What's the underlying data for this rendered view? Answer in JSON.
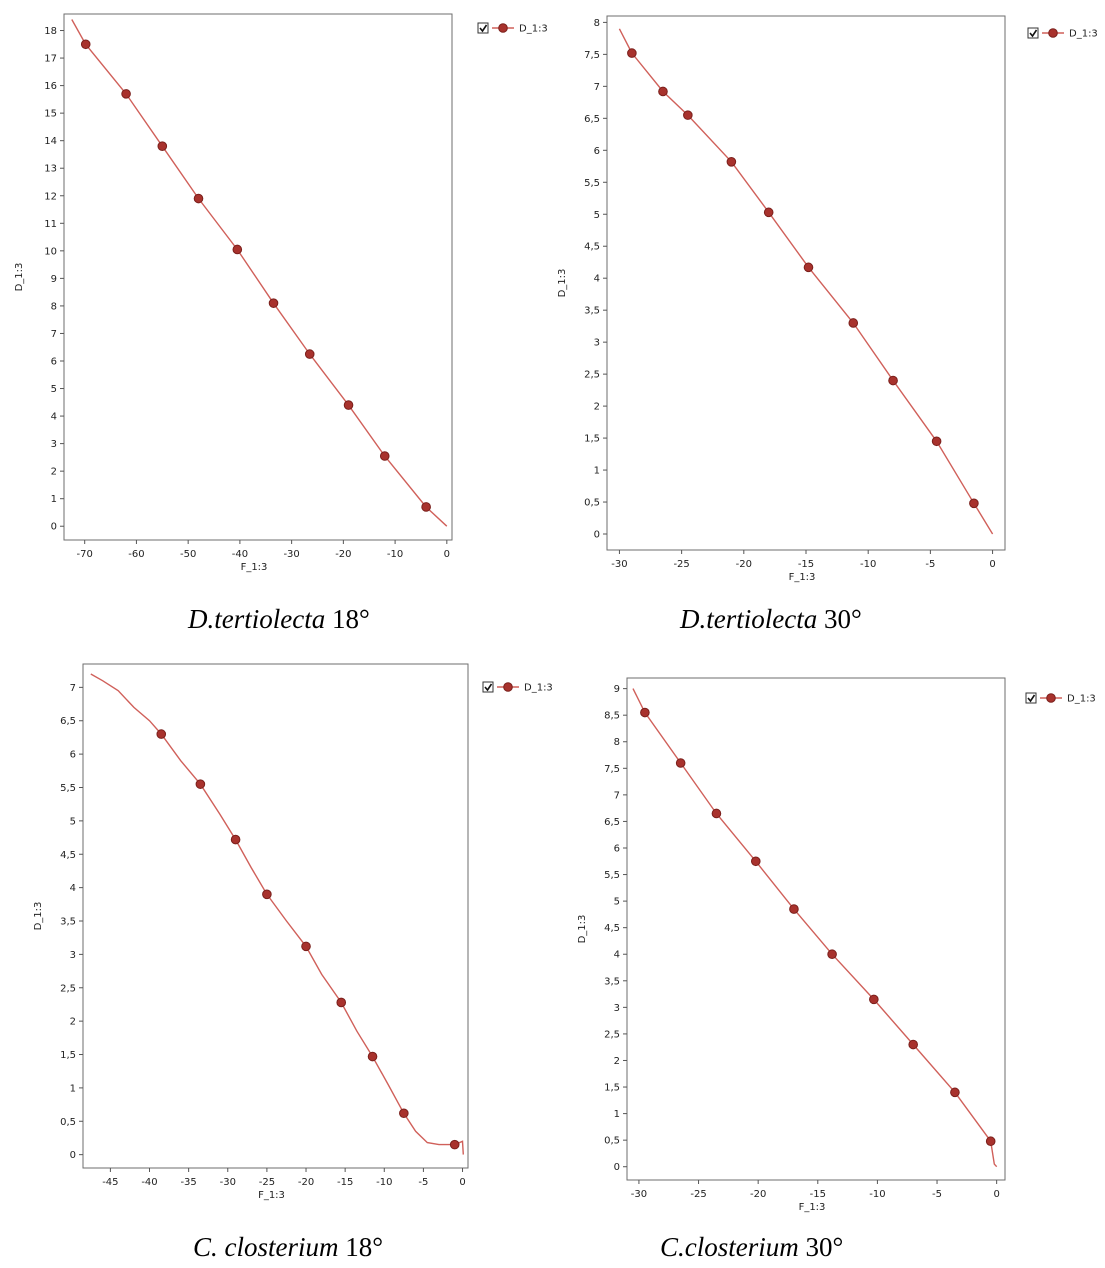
{
  "captions": [
    {
      "species": "D.tertiolecta",
      "sep": " ",
      "angle": "18°"
    },
    {
      "species": "D.tertiolecta",
      "sep": " ",
      "angle": "30°"
    },
    {
      "species": "C. closterium",
      "sep": " ",
      "angle": "18°"
    },
    {
      "species": "C.closterium",
      "sep": " ",
      "angle": "30°"
    }
  ],
  "colors": {
    "line": "#d0605a",
    "marker": "#a8322d"
  },
  "chart_data": [
    {
      "type": "line",
      "xlabel": "F_1:3",
      "ylabel": "D_1:3",
      "xlim": [
        -74,
        1
      ],
      "ylim": [
        -0.5,
        18.6
      ],
      "xticks": [
        -70,
        -60,
        -50,
        -40,
        -30,
        -20,
        -10,
        0
      ],
      "yticks": [
        0,
        1,
        2,
        3,
        4,
        5,
        6,
        7,
        8,
        9,
        10,
        11,
        12,
        13,
        14,
        15,
        16,
        17,
        18
      ],
      "legend": "top-right",
      "grid": false,
      "series": [
        {
          "name": "D_1:3",
          "line": [
            [
              -72.5,
              18.4
            ],
            [
              -69.8,
              17.5
            ],
            [
              -62,
              15.7
            ],
            [
              -55,
              13.8
            ],
            [
              -48,
              11.9
            ],
            [
              -40.5,
              10.05
            ],
            [
              -33.5,
              8.1
            ],
            [
              -26.5,
              6.25
            ],
            [
              -19,
              4.4
            ],
            [
              -12,
              2.55
            ],
            [
              -4,
              0.7
            ],
            [
              0,
              0
            ]
          ],
          "markers": [
            [
              -69.8,
              17.5
            ],
            [
              -62,
              15.7
            ],
            [
              -55,
              13.8
            ],
            [
              -48,
              11.9
            ],
            [
              -40.5,
              10.05
            ],
            [
              -33.5,
              8.1
            ],
            [
              -26.5,
              6.25
            ],
            [
              -19,
              4.4
            ],
            [
              -12,
              2.55
            ],
            [
              -4,
              0.7
            ]
          ]
        }
      ]
    },
    {
      "type": "line",
      "xlabel": "F_1:3",
      "ylabel": "D_1:3",
      "xlim": [
        -31,
        1
      ],
      "ylim": [
        -0.25,
        8.1
      ],
      "xticks": [
        -30,
        -25,
        -20,
        -15,
        -10,
        -5,
        0
      ],
      "yticks": [
        0,
        0.5,
        1,
        1.5,
        2,
        2.5,
        3,
        3.5,
        4,
        4.5,
        5,
        5.5,
        6,
        6.5,
        7,
        7.5,
        8
      ],
      "tick_decimal": ",",
      "legend": "top-right",
      "grid": false,
      "series": [
        {
          "name": "D_1:3",
          "line": [
            [
              -30,
              7.9
            ],
            [
              -29,
              7.52
            ],
            [
              -26.5,
              6.92
            ],
            [
              -24.5,
              6.55
            ],
            [
              -21,
              5.82
            ],
            [
              -18,
              5.03
            ],
            [
              -14.8,
              4.17
            ],
            [
              -11.2,
              3.3
            ],
            [
              -8,
              2.4
            ],
            [
              -4.5,
              1.45
            ],
            [
              -1.5,
              0.48
            ],
            [
              0,
              0
            ]
          ],
          "markers": [
            [
              -29,
              7.52
            ],
            [
              -26.5,
              6.92
            ],
            [
              -24.5,
              6.55
            ],
            [
              -21,
              5.82
            ],
            [
              -18,
              5.03
            ],
            [
              -14.8,
              4.17
            ],
            [
              -11.2,
              3.3
            ],
            [
              -8,
              2.4
            ],
            [
              -4.5,
              1.45
            ],
            [
              -1.5,
              0.48
            ]
          ]
        }
      ]
    },
    {
      "type": "line",
      "xlabel": "F_1:3",
      "ylabel": "D_1:3",
      "xlim": [
        -48.5,
        0.7
      ],
      "ylim": [
        -0.2,
        7.35
      ],
      "xticks": [
        -45,
        -40,
        -35,
        -30,
        -25,
        -20,
        -15,
        -10,
        -5,
        0
      ],
      "yticks": [
        0,
        0.5,
        1,
        1.5,
        2,
        2.5,
        3,
        3.5,
        4,
        4.5,
        5,
        5.5,
        6,
        6.5,
        7
      ],
      "tick_decimal": ",",
      "legend": "top-right",
      "grid": false,
      "series": [
        {
          "name": "D_1:3",
          "line": [
            [
              -47.5,
              7.2
            ],
            [
              -46,
              7.1
            ],
            [
              -44,
              6.95
            ],
            [
              -42,
              6.7
            ],
            [
              -40,
              6.5
            ],
            [
              -38.5,
              6.3
            ],
            [
              -36,
              5.9
            ],
            [
              -33.5,
              5.55
            ],
            [
              -31,
              5.1
            ],
            [
              -29,
              4.72
            ],
            [
              -27,
              4.3
            ],
            [
              -25,
              3.9
            ],
            [
              -22.5,
              3.5
            ],
            [
              -20,
              3.12
            ],
            [
              -18,
              2.7
            ],
            [
              -15.5,
              2.28
            ],
            [
              -13.5,
              1.85
            ],
            [
              -11.5,
              1.47
            ],
            [
              -9.5,
              1.05
            ],
            [
              -7.5,
              0.62
            ],
            [
              -6,
              0.35
            ],
            [
              -4.5,
              0.18
            ],
            [
              -3,
              0.15
            ],
            [
              -1,
              0.15
            ],
            [
              0,
              0.2
            ],
            [
              0.1,
              0
            ]
          ],
          "markers": [
            [
              -38.5,
              6.3
            ],
            [
              -33.5,
              5.55
            ],
            [
              -29,
              4.72
            ],
            [
              -25,
              3.9
            ],
            [
              -20,
              3.12
            ],
            [
              -15.5,
              2.28
            ],
            [
              -11.5,
              1.47
            ],
            [
              -7.5,
              0.62
            ],
            [
              -1,
              0.15
            ]
          ]
        }
      ]
    },
    {
      "type": "line",
      "xlabel": "F_1:3",
      "ylabel": "D_1:3",
      "xlim": [
        -31,
        0.7
      ],
      "ylim": [
        -0.25,
        9.2
      ],
      "xticks": [
        -30,
        -25,
        -20,
        -15,
        -10,
        -5,
        0
      ],
      "yticks": [
        0,
        0.5,
        1,
        1.5,
        2,
        2.5,
        3,
        3.5,
        4,
        4.5,
        5,
        5.5,
        6,
        6.5,
        7,
        7.5,
        8,
        8.5,
        9
      ],
      "tick_decimal": ",",
      "legend": "top-right",
      "grid": false,
      "series": [
        {
          "name": "D_1:3",
          "line": [
            [
              -30.5,
              9
            ],
            [
              -29.5,
              8.55
            ],
            [
              -26.5,
              7.6
            ],
            [
              -23.5,
              6.65
            ],
            [
              -20.2,
              5.75
            ],
            [
              -17,
              4.85
            ],
            [
              -13.8,
              4.0
            ],
            [
              -10.3,
              3.15
            ],
            [
              -7,
              2.3
            ],
            [
              -3.5,
              1.4
            ],
            [
              -0.5,
              0.48
            ],
            [
              -0.2,
              0.05
            ],
            [
              0,
              0
            ]
          ],
          "markers": [
            [
              -29.5,
              8.55
            ],
            [
              -26.5,
              7.6
            ],
            [
              -23.5,
              6.65
            ],
            [
              -20.2,
              5.75
            ],
            [
              -17,
              4.85
            ],
            [
              -13.8,
              4.0
            ],
            [
              -10.3,
              3.15
            ],
            [
              -7,
              2.3
            ],
            [
              -3.5,
              1.4
            ],
            [
              -0.5,
              0.48
            ]
          ]
        }
      ]
    }
  ]
}
